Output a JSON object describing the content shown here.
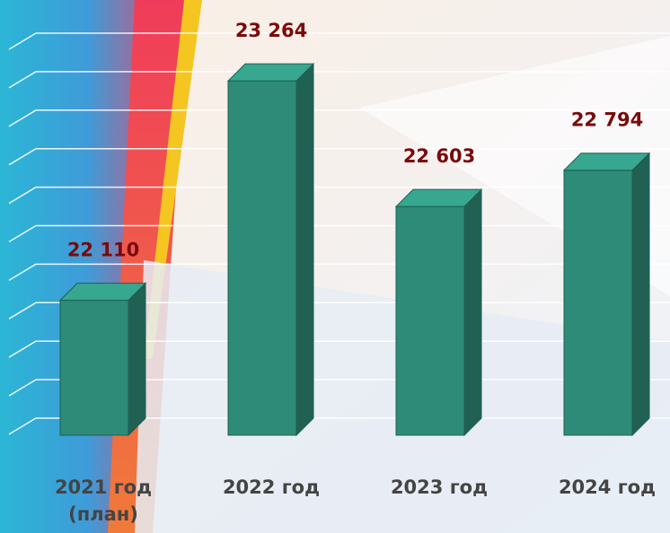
{
  "chart_data": {
    "type": "bar",
    "categories": [
      "2021 год (план)",
      "2022 год",
      "2023 год",
      "2024 год"
    ],
    "values": [
      22110,
      23264,
      22603,
      22794
    ],
    "value_labels": [
      "22 110",
      "23 264",
      "22 603",
      "22 794"
    ],
    "color": "#2e8b78",
    "ylim": [
      21400,
      23600
    ],
    "grid": true
  }
}
